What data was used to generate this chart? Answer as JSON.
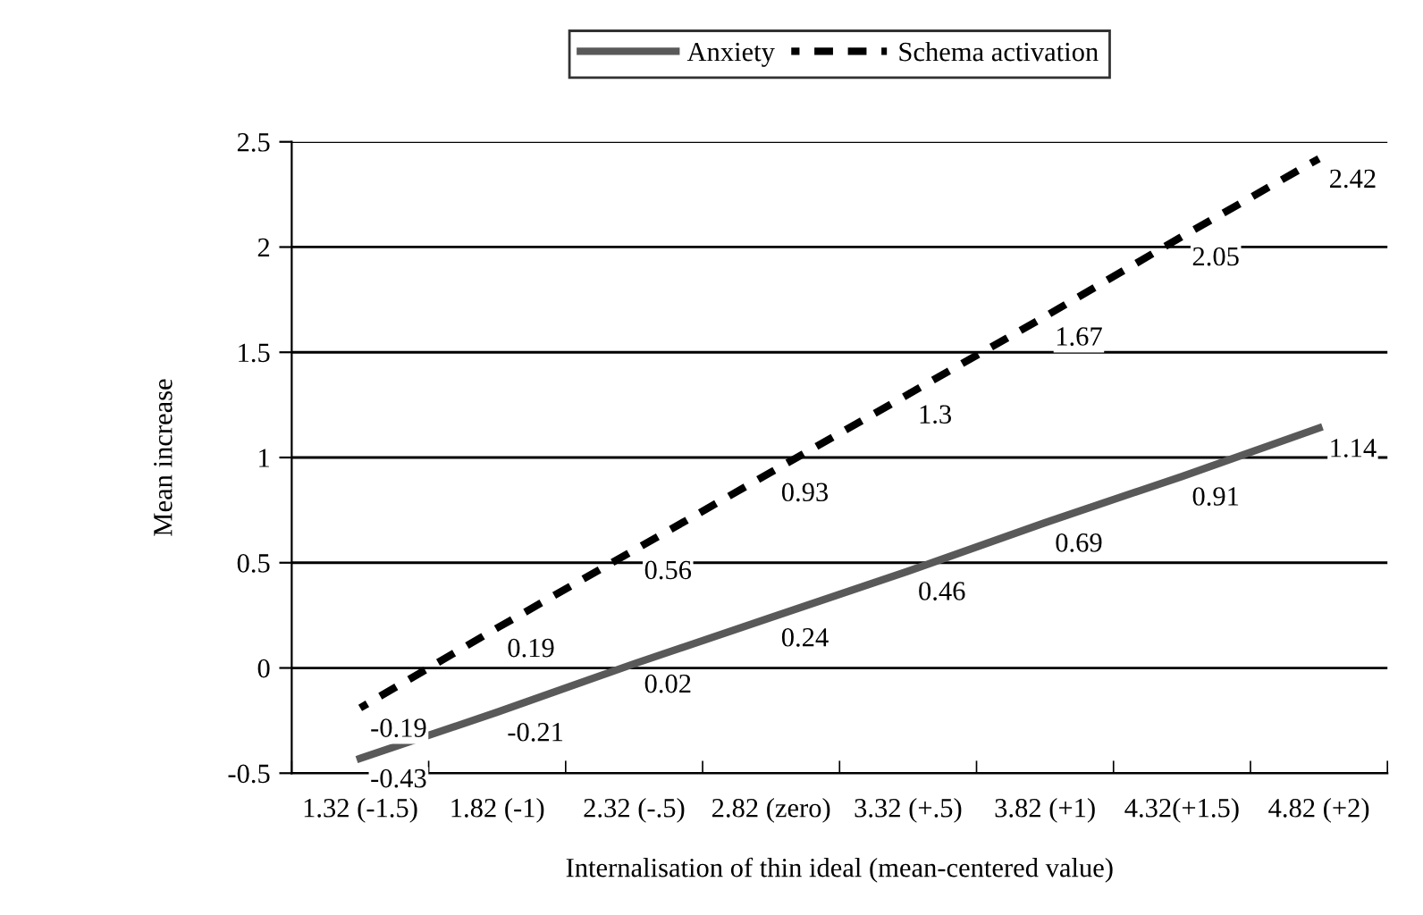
{
  "chart_data": {
    "type": "line",
    "xlabel": "Internalisation of thin ideal (mean-centered value)",
    "ylabel": "Mean increase",
    "categories": [
      "1.32 (-1.5)",
      "1.82 (-1)",
      "2.32 (-.5)",
      "2.82 (zero)",
      "3.32 (+.5)",
      "3.82 (+1)",
      "4.32(+1.5)",
      "4.82 (+2)"
    ],
    "series": [
      {
        "name": "Anxiety",
        "color": "#595959",
        "line_style": "solid",
        "values": [
          -0.43,
          -0.21,
          0.02,
          0.24,
          0.46,
          0.69,
          0.91,
          1.14
        ]
      },
      {
        "name": "Schema activation",
        "color": "#000000",
        "line_style": "dashed",
        "values": [
          -0.19,
          0.19,
          0.56,
          0.93,
          1.3,
          1.67,
          2.05,
          2.42
        ]
      }
    ],
    "ylim": [
      -0.5,
      2.5
    ],
    "yticks": [
      -0.5,
      0,
      0.5,
      1,
      1.5,
      2,
      2.5
    ],
    "grid": "y",
    "legend": "top",
    "data_labels": true,
    "marker": "none"
  }
}
